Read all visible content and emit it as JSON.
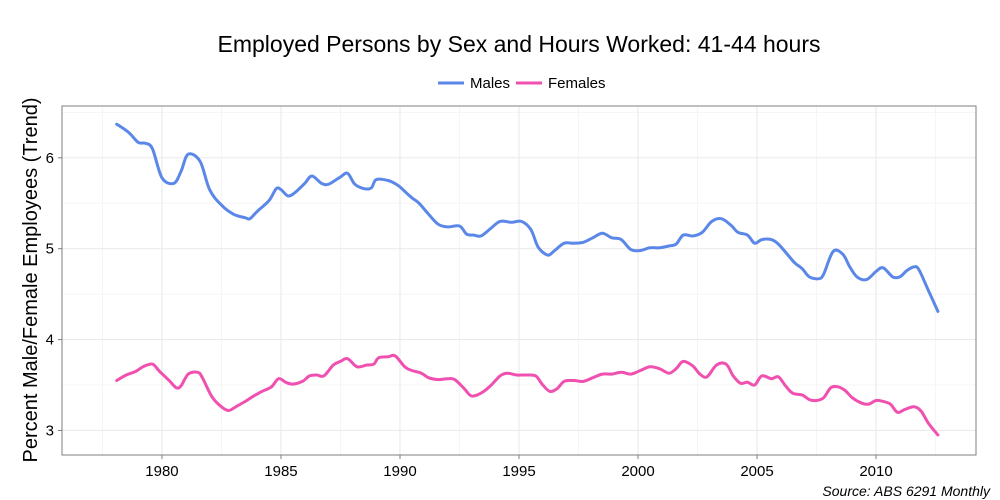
{
  "chart_data": {
    "type": "line",
    "title": "Employed Persons by Sex and Hours Worked: 41-44 hours",
    "xlabel": "",
    "ylabel": "Percent Male/Female Employees (Trend)",
    "caption": "Source: ABS 6291 Monthly",
    "xlim": [
      1975.8,
      2014.2
    ],
    "ylim": [
      2.73,
      6.57
    ],
    "x_ticks": [
      1980,
      1985,
      1990,
      1995,
      2000,
      2005,
      2010
    ],
    "x_tick_labels": [
      "1980",
      "1985",
      "1990",
      "1995",
      "2000",
      "2005",
      "2010"
    ],
    "y_ticks": [
      3,
      4,
      5,
      6
    ],
    "y_tick_labels": [
      "3",
      "4",
      "5",
      "6"
    ],
    "grid": true,
    "legend_position": "top",
    "series": [
      {
        "name": "Males",
        "color": "#5A87E8",
        "points": [
          [
            1978.1,
            6.37
          ],
          [
            1978.6,
            6.28
          ],
          [
            1979.0,
            6.17
          ],
          [
            1979.3,
            6.16
          ],
          [
            1979.6,
            6.1
          ],
          [
            1980.0,
            5.78
          ],
          [
            1980.5,
            5.72
          ],
          [
            1980.8,
            5.85
          ],
          [
            1981.1,
            6.04
          ],
          [
            1981.6,
            5.96
          ],
          [
            1982.0,
            5.65
          ],
          [
            1982.5,
            5.48
          ],
          [
            1983.0,
            5.38
          ],
          [
            1983.5,
            5.34
          ],
          [
            1983.7,
            5.33
          ],
          [
            1984.0,
            5.41
          ],
          [
            1984.5,
            5.53
          ],
          [
            1984.8,
            5.66
          ],
          [
            1985.0,
            5.65
          ],
          [
            1985.3,
            5.58
          ],
          [
            1985.6,
            5.62
          ],
          [
            1986.0,
            5.72
          ],
          [
            1986.3,
            5.8
          ],
          [
            1986.7,
            5.72
          ],
          [
            1987.0,
            5.71
          ],
          [
            1987.5,
            5.79
          ],
          [
            1987.8,
            5.83
          ],
          [
            1988.1,
            5.71
          ],
          [
            1988.5,
            5.66
          ],
          [
            1988.8,
            5.67
          ],
          [
            1989.0,
            5.76
          ],
          [
            1989.5,
            5.75
          ],
          [
            1989.9,
            5.7
          ],
          [
            1990.2,
            5.63
          ],
          [
            1990.5,
            5.56
          ],
          [
            1990.8,
            5.5
          ],
          [
            1991.2,
            5.38
          ],
          [
            1991.6,
            5.27
          ],
          [
            1992.0,
            5.24
          ],
          [
            1992.5,
            5.25
          ],
          [
            1992.8,
            5.16
          ],
          [
            1993.1,
            5.15
          ],
          [
            1993.4,
            5.14
          ],
          [
            1993.8,
            5.22
          ],
          [
            1994.2,
            5.3
          ],
          [
            1994.7,
            5.29
          ],
          [
            1995.1,
            5.3
          ],
          [
            1995.5,
            5.21
          ],
          [
            1995.8,
            5.02
          ],
          [
            1996.2,
            4.93
          ],
          [
            1996.5,
            4.98
          ],
          [
            1996.9,
            5.06
          ],
          [
            1997.3,
            5.06
          ],
          [
            1997.7,
            5.07
          ],
          [
            1998.1,
            5.12
          ],
          [
            1998.5,
            5.17
          ],
          [
            1998.9,
            5.12
          ],
          [
            1999.3,
            5.1
          ],
          [
            1999.7,
            4.99
          ],
          [
            2000.1,
            4.98
          ],
          [
            2000.5,
            5.01
          ],
          [
            2000.9,
            5.01
          ],
          [
            2001.3,
            5.03
          ],
          [
            2001.6,
            5.05
          ],
          [
            2001.9,
            5.15
          ],
          [
            2002.3,
            5.14
          ],
          [
            2002.7,
            5.18
          ],
          [
            2003.1,
            5.3
          ],
          [
            2003.5,
            5.33
          ],
          [
            2003.9,
            5.26
          ],
          [
            2004.2,
            5.18
          ],
          [
            2004.6,
            5.15
          ],
          [
            2004.9,
            5.06
          ],
          [
            2005.2,
            5.1
          ],
          [
            2005.6,
            5.1
          ],
          [
            2005.9,
            5.05
          ],
          [
            2006.3,
            4.93
          ],
          [
            2006.6,
            4.84
          ],
          [
            2006.9,
            4.78
          ],
          [
            2007.2,
            4.69
          ],
          [
            2007.6,
            4.67
          ],
          [
            2007.8,
            4.72
          ],
          [
            2008.2,
            4.97
          ],
          [
            2008.6,
            4.94
          ],
          [
            2008.9,
            4.8
          ],
          [
            2009.2,
            4.69
          ],
          [
            2009.6,
            4.66
          ],
          [
            2010.0,
            4.75
          ],
          [
            2010.3,
            4.79
          ],
          [
            2010.7,
            4.69
          ],
          [
            2011.0,
            4.69
          ],
          [
            2011.3,
            4.76
          ],
          [
            2011.6,
            4.8
          ],
          [
            2011.8,
            4.77
          ],
          [
            2012.2,
            4.54
          ],
          [
            2012.6,
            4.31
          ]
        ]
      },
      {
        "name": "Females",
        "color": "#F050AF",
        "points": [
          [
            1978.1,
            3.55
          ],
          [
            1978.5,
            3.61
          ],
          [
            1978.9,
            3.65
          ],
          [
            1979.2,
            3.7
          ],
          [
            1979.6,
            3.73
          ],
          [
            1979.9,
            3.65
          ],
          [
            1980.3,
            3.55
          ],
          [
            1980.6,
            3.47
          ],
          [
            1980.8,
            3.49
          ],
          [
            1981.1,
            3.62
          ],
          [
            1981.5,
            3.64
          ],
          [
            1981.7,
            3.58
          ],
          [
            1982.1,
            3.37
          ],
          [
            1982.5,
            3.26
          ],
          [
            1982.8,
            3.22
          ],
          [
            1983.1,
            3.26
          ],
          [
            1983.5,
            3.32
          ],
          [
            1983.8,
            3.37
          ],
          [
            1984.2,
            3.43
          ],
          [
            1984.6,
            3.48
          ],
          [
            1984.9,
            3.57
          ],
          [
            1985.2,
            3.53
          ],
          [
            1985.5,
            3.51
          ],
          [
            1985.9,
            3.54
          ],
          [
            1986.2,
            3.6
          ],
          [
            1986.5,
            3.61
          ],
          [
            1986.8,
            3.6
          ],
          [
            1987.2,
            3.72
          ],
          [
            1987.5,
            3.76
          ],
          [
            1987.8,
            3.79
          ],
          [
            1988.2,
            3.7
          ],
          [
            1988.6,
            3.72
          ],
          [
            1988.9,
            3.73
          ],
          [
            1989.1,
            3.8
          ],
          [
            1989.5,
            3.81
          ],
          [
            1989.8,
            3.82
          ],
          [
            1990.2,
            3.7
          ],
          [
            1990.5,
            3.66
          ],
          [
            1990.9,
            3.63
          ],
          [
            1991.2,
            3.58
          ],
          [
            1991.6,
            3.56
          ],
          [
            1992.0,
            3.57
          ],
          [
            1992.3,
            3.56
          ],
          [
            1992.7,
            3.46
          ],
          [
            1993.0,
            3.38
          ],
          [
            1993.4,
            3.41
          ],
          [
            1993.8,
            3.49
          ],
          [
            1994.2,
            3.6
          ],
          [
            1994.5,
            3.63
          ],
          [
            1994.9,
            3.61
          ],
          [
            1995.3,
            3.61
          ],
          [
            1995.7,
            3.6
          ],
          [
            1996.0,
            3.5
          ],
          [
            1996.3,
            3.43
          ],
          [
            1996.6,
            3.46
          ],
          [
            1996.9,
            3.54
          ],
          [
            1997.3,
            3.55
          ],
          [
            1997.7,
            3.54
          ],
          [
            1998.1,
            3.58
          ],
          [
            1998.5,
            3.62
          ],
          [
            1998.9,
            3.62
          ],
          [
            1999.3,
            3.64
          ],
          [
            1999.7,
            3.62
          ],
          [
            2000.1,
            3.66
          ],
          [
            2000.5,
            3.7
          ],
          [
            2000.9,
            3.68
          ],
          [
            2001.3,
            3.63
          ],
          [
            2001.6,
            3.68
          ],
          [
            2001.9,
            3.76
          ],
          [
            2002.3,
            3.71
          ],
          [
            2002.6,
            3.62
          ],
          [
            2002.9,
            3.59
          ],
          [
            2003.3,
            3.72
          ],
          [
            2003.7,
            3.73
          ],
          [
            2004.0,
            3.6
          ],
          [
            2004.3,
            3.52
          ],
          [
            2004.6,
            3.53
          ],
          [
            2004.9,
            3.5
          ],
          [
            2005.2,
            3.6
          ],
          [
            2005.6,
            3.57
          ],
          [
            2005.9,
            3.59
          ],
          [
            2006.2,
            3.49
          ],
          [
            2006.5,
            3.41
          ],
          [
            2006.9,
            3.39
          ],
          [
            2007.2,
            3.34
          ],
          [
            2007.5,
            3.33
          ],
          [
            2007.8,
            3.36
          ],
          [
            2008.1,
            3.47
          ],
          [
            2008.4,
            3.48
          ],
          [
            2008.7,
            3.44
          ],
          [
            2009.0,
            3.36
          ],
          [
            2009.4,
            3.3
          ],
          [
            2009.7,
            3.29
          ],
          [
            2010.0,
            3.33
          ],
          [
            2010.3,
            3.32
          ],
          [
            2010.6,
            3.29
          ],
          [
            2010.9,
            3.2
          ],
          [
            2011.2,
            3.23
          ],
          [
            2011.6,
            3.26
          ],
          [
            2011.9,
            3.21
          ],
          [
            2012.2,
            3.08
          ],
          [
            2012.6,
            2.95
          ]
        ]
      }
    ]
  },
  "colors": {
    "grid_major": "#EBEBEB",
    "grid_minor": "#F5F5F5",
    "panel_border": "#7F7F7F"
  }
}
